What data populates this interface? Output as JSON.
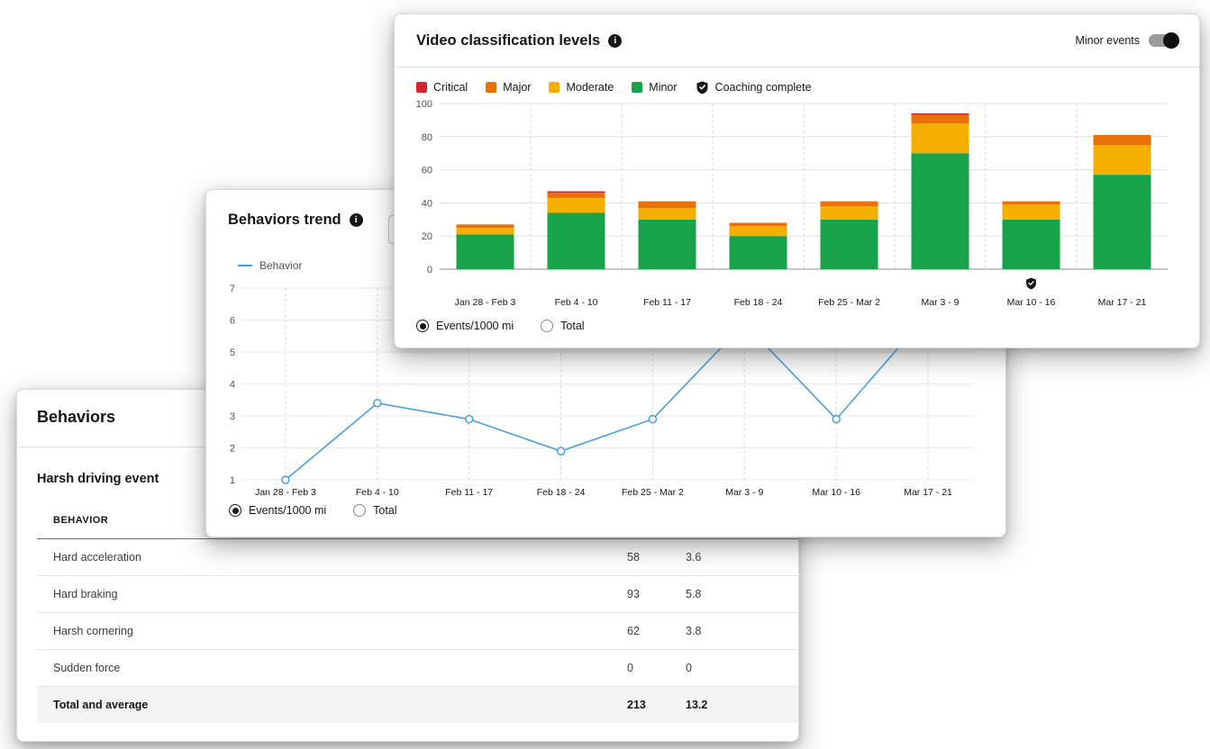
{
  "icons": {
    "info": "i"
  },
  "video_card": {
    "title": "Video classification levels",
    "toggle": {
      "label": "Minor events",
      "on": true
    },
    "legend_order": [
      "Critical",
      "Major",
      "Moderate",
      "Minor"
    ],
    "legend_coaching": "Coaching complete",
    "radios": [
      {
        "label": "Events/1000 mi",
        "selected": true
      },
      {
        "label": "Total",
        "selected": false
      }
    ]
  },
  "trend_card": {
    "title": "Behaviors trend",
    "legend_label": "Behavior",
    "radios": [
      {
        "label": "Events/1000 mi",
        "selected": true
      },
      {
        "label": "Total",
        "selected": false
      }
    ]
  },
  "behaviors_card": {
    "title": "Behaviors",
    "subtitle": "Harsh driving event",
    "table": {
      "header": "BEHAVIOR",
      "rows": [
        {
          "label": "Hard acceleration",
          "count": "58",
          "rate": "3.6"
        },
        {
          "label": "Hard braking",
          "count": "93",
          "rate": "5.8"
        },
        {
          "label": "Harsh cornering",
          "count": "62",
          "rate": "3.8"
        },
        {
          "label": "Sudden force",
          "count": "0",
          "rate": "0"
        }
      ],
      "total_row": {
        "label": "Total and average",
        "count": "213",
        "rate": "13.2"
      }
    }
  },
  "chart_data": [
    {
      "type": "bar",
      "stacked": true,
      "title": "Video classification levels",
      "categories": [
        "Jan 28 - Feb 3",
        "Feb 4 - 10",
        "Feb 11 - 17",
        "Feb 18 - 24",
        "Feb 25 - Mar 2",
        "Mar 3 - 9",
        "Mar 10 - 16",
        "Mar 17 - 21"
      ],
      "series": [
        {
          "name": "Minor",
          "color": "#18a34a",
          "values": [
            21,
            34,
            30,
            20,
            30,
            70,
            30,
            57
          ]
        },
        {
          "name": "Moderate",
          "color": "#f5af00",
          "values": [
            4,
            9,
            7,
            6,
            8,
            18,
            9,
            18
          ]
        },
        {
          "name": "Major",
          "color": "#e8710a",
          "values": [
            2,
            3,
            4,
            2,
            3,
            5,
            2,
            6
          ]
        },
        {
          "name": "Critical",
          "color": "#d5232e",
          "values": [
            0,
            1,
            0,
            0,
            0,
            1,
            0,
            0
          ]
        }
      ],
      "ylim": [
        0,
        100
      ],
      "yticks": [
        0,
        20,
        40,
        60,
        80,
        100
      ],
      "grid": true,
      "legend_position": "top-left",
      "coaching_complete_category": "Mar 10 - 16"
    },
    {
      "type": "line",
      "title": "Behaviors trend",
      "categories": [
        "Jan 28 - Feb 3",
        "Feb 4 - 10",
        "Feb 11 - 17",
        "Feb 18 - 24",
        "Feb 25 - Mar 2",
        "Mar 3 - 9",
        "Mar 10 - 16",
        "Mar 17 - 21"
      ],
      "series": [
        {
          "name": "Behavior",
          "color": "#4a9fe0",
          "values": [
            1,
            3.4,
            2.9,
            1.9,
            2.9,
            5.9,
            2.9,
            6.2
          ]
        }
      ],
      "ylim": [
        1,
        7
      ],
      "yticks": [
        1,
        2,
        3,
        4,
        5,
        6,
        7
      ],
      "grid": true,
      "legend_position": "top-left"
    }
  ]
}
